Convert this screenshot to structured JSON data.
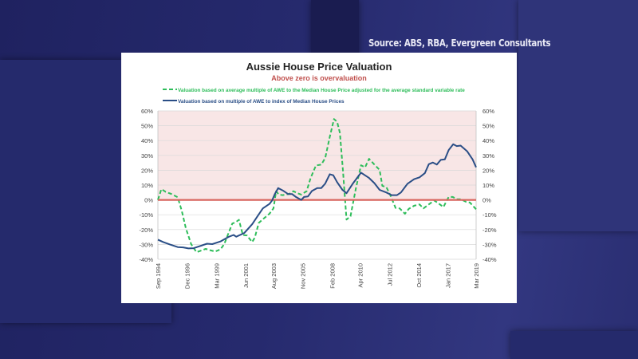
{
  "source": "Source: ABS, RBA, Evergreen Consultants",
  "chart_data": {
    "type": "line",
    "title": "Aussie House Price Valuation",
    "subtitle": "Above zero is overvaluation",
    "ylim": [
      -40,
      60
    ],
    "yticks": [
      "60%",
      "50%",
      "40%",
      "30%",
      "20%",
      "10%",
      "0%",
      "-10%",
      "-20%",
      "-30%",
      "-40%"
    ],
    "ytick_values": [
      60,
      50,
      40,
      30,
      20,
      10,
      0,
      -10,
      -20,
      -30,
      -40
    ],
    "xlim": [
      1994.67,
      2019.17
    ],
    "xticks": [
      "Sep 1994",
      "Dec 1996",
      "Mar 1999",
      "Jun 2001",
      "Aug 2003",
      "Nov 2005",
      "Feb 2008",
      "Apr 2010",
      "Jul 2012",
      "Oct 2014",
      "Jan 2017",
      "Mar 2019"
    ],
    "xtick_values": [
      1994.67,
      1996.92,
      1999.17,
      2001.42,
      2003.58,
      2005.83,
      2008.08,
      2010.25,
      2012.5,
      2014.75,
      2017.0,
      2019.17
    ],
    "grid": true,
    "legend": "top",
    "overvaluation_shading": "#f8e6e6",
    "zero_line_color": "#d9655e",
    "series": [
      {
        "name": "Valuation based on average multiple of AWE to the Median House Price adjusted for the average standard  variable rate",
        "color": "#2ebd5a",
        "style": "dashed",
        "points": [
          [
            1994.67,
            0
          ],
          [
            1994.94,
            7.3
          ],
          [
            1995.28,
            5.4
          ],
          [
            1995.69,
            4.1
          ],
          [
            1996.2,
            1.8
          ],
          [
            1996.51,
            -7.5
          ],
          [
            1996.82,
            -19
          ],
          [
            1997.23,
            -29.8
          ],
          [
            1997.64,
            -35.2
          ],
          [
            1997.94,
            -34.3
          ],
          [
            1998.35,
            -33
          ],
          [
            1998.66,
            -33.8
          ],
          [
            1999.07,
            -34.8
          ],
          [
            1999.48,
            -33.4
          ],
          [
            1999.78,
            -29.8
          ],
          [
            2000.09,
            -22.7
          ],
          [
            2000.4,
            -15.9
          ],
          [
            2000.66,
            -15
          ],
          [
            2000.91,
            -13.4
          ],
          [
            2001.21,
            -23.6
          ],
          [
            2001.52,
            -23.9
          ],
          [
            2001.93,
            -28.4
          ],
          [
            2002.13,
            -25.4
          ],
          [
            2002.44,
            -15.5
          ],
          [
            2002.85,
            -12.3
          ],
          [
            2003.26,
            -9.3
          ],
          [
            2003.57,
            -5.7
          ],
          [
            2003.77,
            5.9
          ],
          [
            2003.98,
            3.6
          ],
          [
            2004.28,
            3.2
          ],
          [
            2004.79,
            4.1
          ],
          [
            2005.1,
            5.9
          ],
          [
            2005.41,
            4.5
          ],
          [
            2005.71,
            3.6
          ],
          [
            2006.12,
            5.9
          ],
          [
            2006.43,
            14.8
          ],
          [
            2006.84,
            23.2
          ],
          [
            2007.25,
            23.8
          ],
          [
            2007.55,
            28.2
          ],
          [
            2007.9,
            42.5
          ],
          [
            2008.23,
            54.5
          ],
          [
            2008.47,
            52.7
          ],
          [
            2008.68,
            45.2
          ],
          [
            2008.92,
            19.3
          ],
          [
            2009.19,
            -13.2
          ],
          [
            2009.5,
            -11
          ],
          [
            2009.91,
            7.7
          ],
          [
            2010.31,
            23.4
          ],
          [
            2010.62,
            22
          ],
          [
            2010.93,
            27.7
          ],
          [
            2011.34,
            23.8
          ],
          [
            2011.74,
            20.2
          ],
          [
            2011.95,
            9.5
          ],
          [
            2012.26,
            8.6
          ],
          [
            2012.56,
            3.2
          ],
          [
            2012.97,
            -5.4
          ],
          [
            2013.28,
            -5.7
          ],
          [
            2013.69,
            -9.3
          ],
          [
            2013.99,
            -6
          ],
          [
            2014.4,
            -3.9
          ],
          [
            2014.81,
            -3
          ],
          [
            2015.12,
            -5.7
          ],
          [
            2015.53,
            -3
          ],
          [
            2015.94,
            -0.4
          ],
          [
            2016.24,
            -2.1
          ],
          [
            2016.65,
            -4.8
          ],
          [
            2017.06,
            2
          ],
          [
            2017.37,
            2
          ],
          [
            2017.68,
            0.5
          ],
          [
            2017.98,
            0.5
          ],
          [
            2018.39,
            -1.3
          ],
          [
            2018.7,
            -1.8
          ],
          [
            2019.17,
            -6.3
          ]
        ]
      },
      {
        "name": "Valuation based on multiple of AWE to index of Median House Prices",
        "color": "#2a4e86",
        "style": "solid",
        "points": [
          [
            1994.67,
            -26.8
          ],
          [
            1995.08,
            -28.4
          ],
          [
            1995.59,
            -30
          ],
          [
            1996.2,
            -31.8
          ],
          [
            1996.61,
            -32
          ],
          [
            1997.02,
            -32.7
          ],
          [
            1997.43,
            -32.5
          ],
          [
            1997.84,
            -31.3
          ],
          [
            1998.45,
            -29.5
          ],
          [
            1998.86,
            -29.8
          ],
          [
            1999.48,
            -28
          ],
          [
            2000.09,
            -25
          ],
          [
            2000.5,
            -23.6
          ],
          [
            2000.7,
            -24.8
          ],
          [
            2001.32,
            -22.3
          ],
          [
            2001.93,
            -16.4
          ],
          [
            2002.34,
            -11
          ],
          [
            2002.75,
            -5.7
          ],
          [
            2003.26,
            -2.7
          ],
          [
            2003.46,
            -0.4
          ],
          [
            2003.67,
            4
          ],
          [
            2003.93,
            8
          ],
          [
            2004.28,
            6.4
          ],
          [
            2004.69,
            4
          ],
          [
            2005.0,
            4
          ],
          [
            2005.3,
            2
          ],
          [
            2005.71,
            0
          ],
          [
            2005.92,
            2
          ],
          [
            2006.22,
            2.3
          ],
          [
            2006.53,
            6
          ],
          [
            2006.94,
            8
          ],
          [
            2007.25,
            8
          ],
          [
            2007.55,
            11
          ],
          [
            2007.9,
            17.3
          ],
          [
            2008.17,
            16.6
          ],
          [
            2008.47,
            12
          ],
          [
            2008.88,
            6.8
          ],
          [
            2009.19,
            4.5
          ],
          [
            2009.7,
            11.3
          ],
          [
            2010.31,
            18.4
          ],
          [
            2010.93,
            14.8
          ],
          [
            2011.34,
            11.3
          ],
          [
            2011.74,
            6.8
          ],
          [
            2012.26,
            5
          ],
          [
            2012.67,
            3.2
          ],
          [
            2013.08,
            3.2
          ],
          [
            2013.38,
            5
          ],
          [
            2013.89,
            10.9
          ],
          [
            2014.4,
            14
          ],
          [
            2014.81,
            15.2
          ],
          [
            2015.22,
            18
          ],
          [
            2015.53,
            24.1
          ],
          [
            2015.84,
            25.2
          ],
          [
            2016.14,
            23.8
          ],
          [
            2016.45,
            27
          ],
          [
            2016.76,
            27.3
          ],
          [
            2017.06,
            33.6
          ],
          [
            2017.41,
            37.5
          ],
          [
            2017.68,
            36.3
          ],
          [
            2017.98,
            36.6
          ],
          [
            2018.49,
            32.7
          ],
          [
            2018.9,
            27.3
          ],
          [
            2019.17,
            22
          ]
        ]
      }
    ]
  }
}
